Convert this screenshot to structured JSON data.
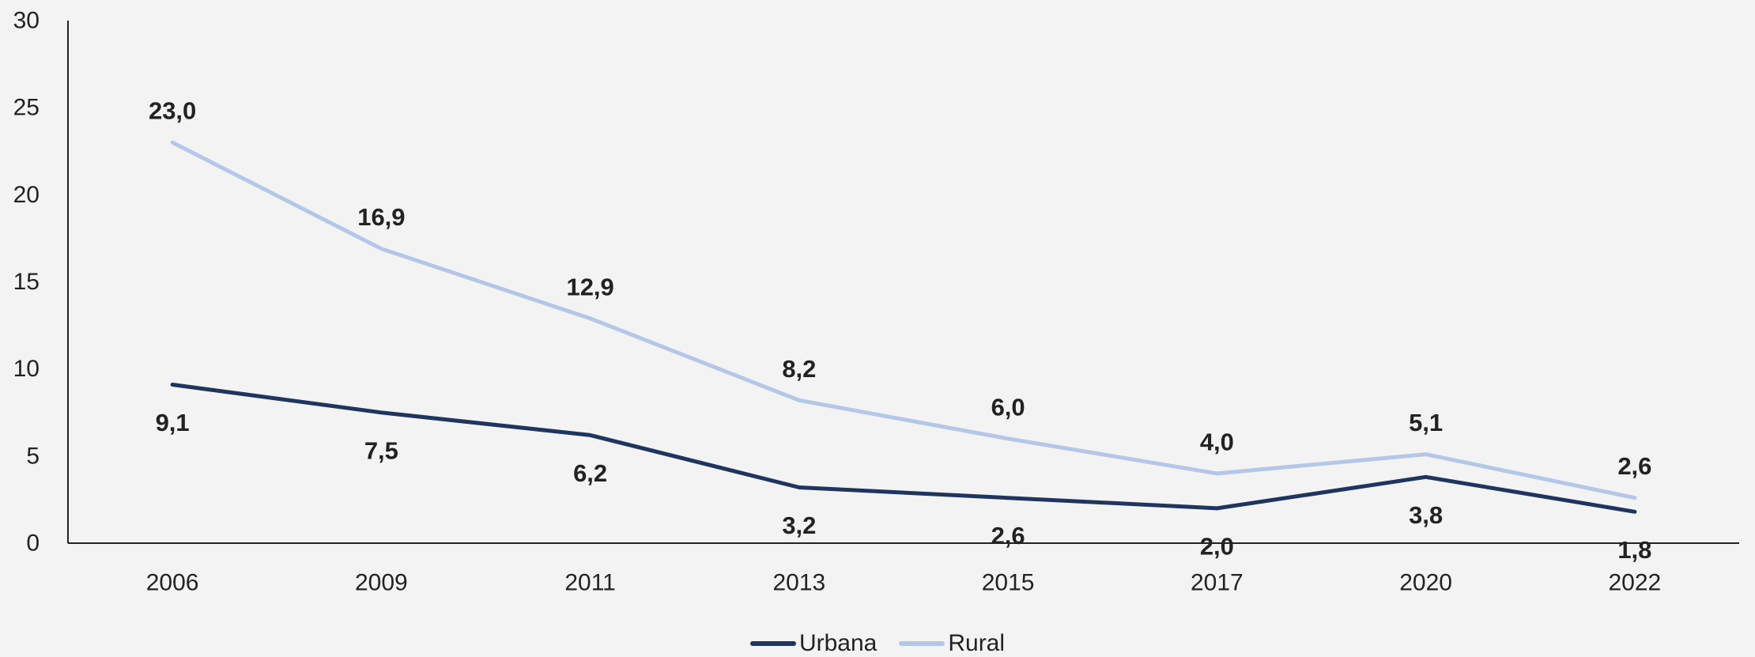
{
  "chart_data": {
    "type": "line",
    "title": "",
    "xlabel": "",
    "ylabel": "",
    "categories": [
      "2006",
      "2009",
      "2011",
      "2013",
      "2015",
      "2017",
      "2020",
      "2022"
    ],
    "ylim": [
      0,
      30
    ],
    "yticks": [
      "0",
      "5",
      "10",
      "15",
      "20",
      "25",
      "30"
    ],
    "grid": false,
    "legend": "bottom-center",
    "series": [
      {
        "name": "Urbana",
        "color": "#1f355e",
        "values": [
          9.1,
          7.5,
          6.2,
          3.2,
          2.6,
          2.0,
          3.8,
          1.8
        ],
        "labels": [
          "9,1",
          "7,5",
          "6,2",
          "3,2",
          "2,6",
          "2,0",
          "3,8",
          "1,8"
        ],
        "label_position": "below"
      },
      {
        "name": "Rural",
        "color": "#b4c7e7",
        "values": [
          23.0,
          16.9,
          12.9,
          8.2,
          6.0,
          4.0,
          5.1,
          2.6
        ],
        "labels": [
          "23,0",
          "16,9",
          "12,9",
          "8,2",
          "6,0",
          "4,0",
          "5,1",
          "2,6"
        ],
        "label_position": "above"
      }
    ]
  }
}
